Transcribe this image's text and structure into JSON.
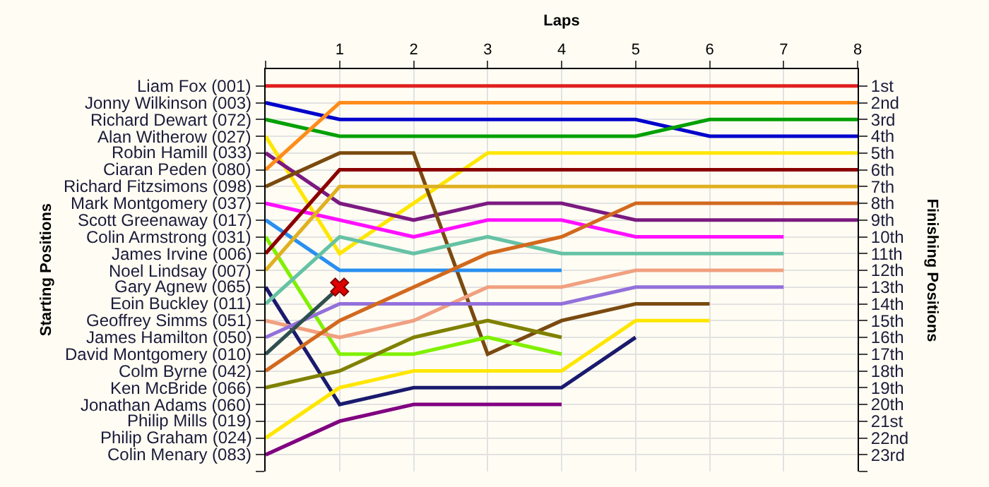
{
  "chart_data": {
    "type": "line",
    "xlabel": "Laps",
    "ylabel": "Finishing Positions",
    "xlim": [
      0,
      8
    ],
    "xticks": [
      {
        "value": 0,
        "label": null
      },
      1,
      2,
      3,
      4,
      5,
      6,
      7,
      8
    ],
    "ylim": [
      24,
      0
    ],
    "yticks": [
      {
        "value": 1,
        "label": "1st"
      },
      {
        "value": 2,
        "label": "2nd"
      },
      {
        "value": 3,
        "label": "3rd"
      },
      {
        "value": 4,
        "label": "4th"
      },
      {
        "value": 5,
        "label": "5th"
      },
      {
        "value": 6,
        "label": "6th"
      },
      {
        "value": 7,
        "label": "7th"
      },
      {
        "value": 8,
        "label": "8th"
      },
      {
        "value": 9,
        "label": "9th"
      },
      {
        "value": 10,
        "label": "10th"
      },
      {
        "value": 11,
        "label": "11th"
      },
      {
        "value": 12,
        "label": "12th"
      },
      {
        "value": 13,
        "label": "13th"
      },
      {
        "value": 14,
        "label": "14th"
      },
      {
        "value": 15,
        "label": "15th"
      },
      {
        "value": 16,
        "label": "16th"
      },
      {
        "value": 17,
        "label": "17th"
      },
      {
        "value": 18,
        "label": "18th"
      },
      {
        "value": 19,
        "label": "19th"
      },
      {
        "value": 20,
        "label": "20th"
      },
      {
        "value": 21,
        "label": "21st"
      },
      {
        "value": 22,
        "label": "22nd"
      },
      {
        "value": 23,
        "label": "23rd"
      },
      {
        "value": 24,
        "label": null
      }
    ],
    "annotations": [
      "Starting Positions",
      "Liam Fox (001)",
      "Jonny Wilkinson (003)",
      "Richard Dewart (072)",
      "Alan Witherow (027)",
      "Robin Hamill (033)",
      "Ciaran Peden (080)",
      "Richard Fitzsimons (098)",
      "Mark Montgomery (037)",
      "Scott Greenaway (017)",
      "Colin Armstrong (031)",
      "James Irvine (006)",
      "Noel Lindsay (007)",
      "Gary Agnew (065)",
      "Eoin Buckley (011)",
      "Geoffrey Simms (051)",
      "James Hamilton (050)",
      "David Montgomery (010)",
      "Colm Byrne (042)",
      "Ken McBride (066)",
      "Jonathan Adams (060)",
      "Philip Mills (019)",
      "Philip Graham (024)",
      "Colin Menary (083)"
    ],
    "grid": true,
    "marker": "none",
    "line_style": "solid",
    "series": [
      {
        "color": "#e02020",
        "x": [
          0,
          1,
          2,
          3,
          4,
          5,
          6,
          7,
          8
        ],
        "values": [
          1,
          1,
          1,
          1,
          1,
          1,
          1,
          1,
          1
        ]
      },
      {
        "color": "#0000cc",
        "x": [
          0,
          1,
          2,
          3,
          4,
          5,
          6,
          7,
          8
        ],
        "values": [
          2,
          3,
          3,
          3,
          3,
          3,
          4,
          4,
          4
        ]
      },
      {
        "color": "#00a000",
        "x": [
          0,
          1,
          2,
          3,
          4,
          5,
          6,
          7,
          8
        ],
        "values": [
          3,
          4,
          4,
          4,
          4,
          4,
          3,
          3,
          3
        ]
      },
      {
        "color": "#ffe600",
        "x": [
          0,
          1,
          2,
          3,
          4,
          5,
          6,
          7,
          8
        ],
        "values": [
          4,
          11,
          8,
          5,
          5,
          5,
          5,
          5,
          5
        ]
      },
      {
        "color": "#7b1a80",
        "x": [
          0,
          1,
          2,
          3,
          4,
          5,
          6,
          7,
          8
        ],
        "values": [
          5,
          8,
          9,
          8,
          8,
          9,
          9,
          9,
          9
        ]
      },
      {
        "color": "#ff8c1a",
        "x": [
          0,
          1,
          2,
          3,
          4,
          5,
          6,
          7,
          8
        ],
        "values": [
          6,
          2,
          2,
          2,
          2,
          2,
          2,
          2,
          2
        ]
      },
      {
        "color": "#7a4a10",
        "x": [
          0,
          1,
          2,
          3,
          4,
          5,
          6
        ],
        "values": [
          7,
          5,
          5,
          17,
          15,
          14,
          14
        ]
      },
      {
        "color": "#ff10ff",
        "x": [
          0,
          1,
          2,
          3,
          4,
          5,
          6,
          7
        ],
        "values": [
          8,
          9,
          10,
          9,
          9,
          10,
          10,
          10
        ]
      },
      {
        "color": "#2a8ff0",
        "x": [
          0,
          1,
          2,
          3,
          4
        ],
        "values": [
          9,
          12,
          12,
          12,
          12
        ]
      },
      {
        "color": "#80f000",
        "x": [
          0,
          1,
          2,
          3,
          4
        ],
        "values": [
          10,
          17,
          17,
          16,
          17
        ]
      },
      {
        "color": "#8b0000",
        "x": [
          0,
          1,
          2,
          3,
          4,
          5,
          6,
          7,
          8
        ],
        "values": [
          11,
          6,
          6,
          6,
          6,
          6,
          6,
          6,
          6
        ]
      },
      {
        "color": "#e0b020",
        "x": [
          0,
          1,
          2,
          3,
          4,
          5,
          6,
          7,
          8
        ],
        "values": [
          12,
          7,
          7,
          7,
          7,
          7,
          7,
          7,
          7
        ]
      },
      {
        "color": "#1a1a6e",
        "x": [
          0,
          1,
          2,
          3,
          4,
          5
        ],
        "values": [
          13,
          20,
          19,
          19,
          19,
          16
        ]
      },
      {
        "color": "#66c2a5",
        "x": [
          0,
          1,
          2,
          3,
          4,
          5,
          6,
          7
        ],
        "values": [
          14,
          10,
          11,
          10,
          11,
          11,
          11,
          11
        ]
      },
      {
        "color": "#f0a080",
        "x": [
          0,
          1,
          2,
          3,
          4,
          5,
          6,
          7
        ],
        "values": [
          15,
          16,
          15,
          13,
          13,
          12,
          12,
          12
        ]
      },
      {
        "color": "#9370db",
        "x": [
          0,
          1,
          2,
          3,
          4,
          5,
          6,
          7
        ],
        "values": [
          16,
          14,
          14,
          14,
          14,
          13,
          13,
          13
        ]
      },
      {
        "color": "#2f4f4f",
        "x": [
          0,
          1
        ],
        "values": [
          17,
          13
        ]
      },
      {
        "color": "#d2691e",
        "x": [
          0,
          1,
          2,
          3,
          4,
          5,
          6,
          7,
          8
        ],
        "values": [
          18,
          15,
          13,
          11,
          10,
          8,
          8,
          8,
          8
        ]
      },
      {
        "color": "#808000",
        "x": [
          0,
          1,
          2,
          3,
          4
        ],
        "values": [
          19,
          18,
          16,
          15,
          16
        ]
      },
      {
        "color": "#ffe600",
        "x": [
          0,
          1,
          2,
          3,
          4,
          5,
          6
        ],
        "values": [
          22,
          19,
          18,
          18,
          18,
          15,
          15
        ]
      },
      {
        "color": "#800080",
        "x": [
          0,
          1,
          2,
          3,
          4
        ],
        "values": [
          23,
          21,
          20,
          20,
          20
        ]
      },
      {
        "type": "scatter",
        "marker": "cross",
        "color": "#e00000",
        "x": [
          1
        ],
        "values": [
          13
        ]
      }
    ]
  }
}
